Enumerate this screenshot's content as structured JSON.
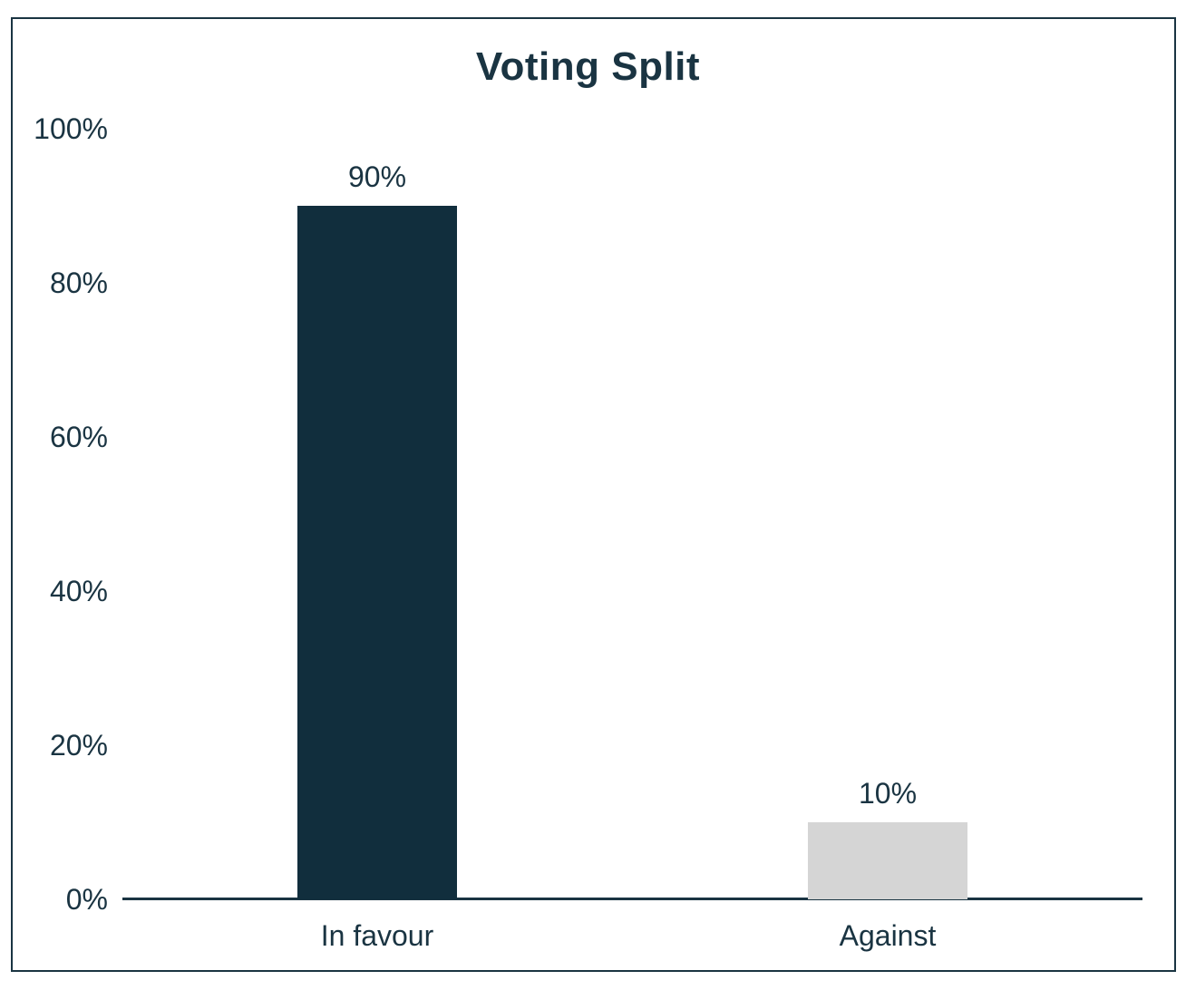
{
  "chart_data": {
    "type": "bar",
    "title": "Voting Split",
    "categories": [
      "In favour",
      "Against"
    ],
    "values": [
      90,
      10
    ],
    "value_labels": [
      "90%",
      "10%"
    ],
    "bar_colors": [
      "#112e3d",
      "#d5d5d5"
    ],
    "xlabel": "",
    "ylabel": "",
    "ylim": [
      0,
      100
    ],
    "yticks": [
      0,
      20,
      40,
      60,
      80,
      100
    ],
    "ytick_labels": [
      "0%",
      "20%",
      "40%",
      "60%",
      "80%",
      "100%"
    ],
    "grid": false,
    "legend": false
  },
  "colors": {
    "text": "#1a3442",
    "axis_line": "#1a3442",
    "frame_border": "#1a3442",
    "bar_in_favour": "#112e3d",
    "bar_against": "#d5d5d5",
    "background": "#ffffff"
  }
}
